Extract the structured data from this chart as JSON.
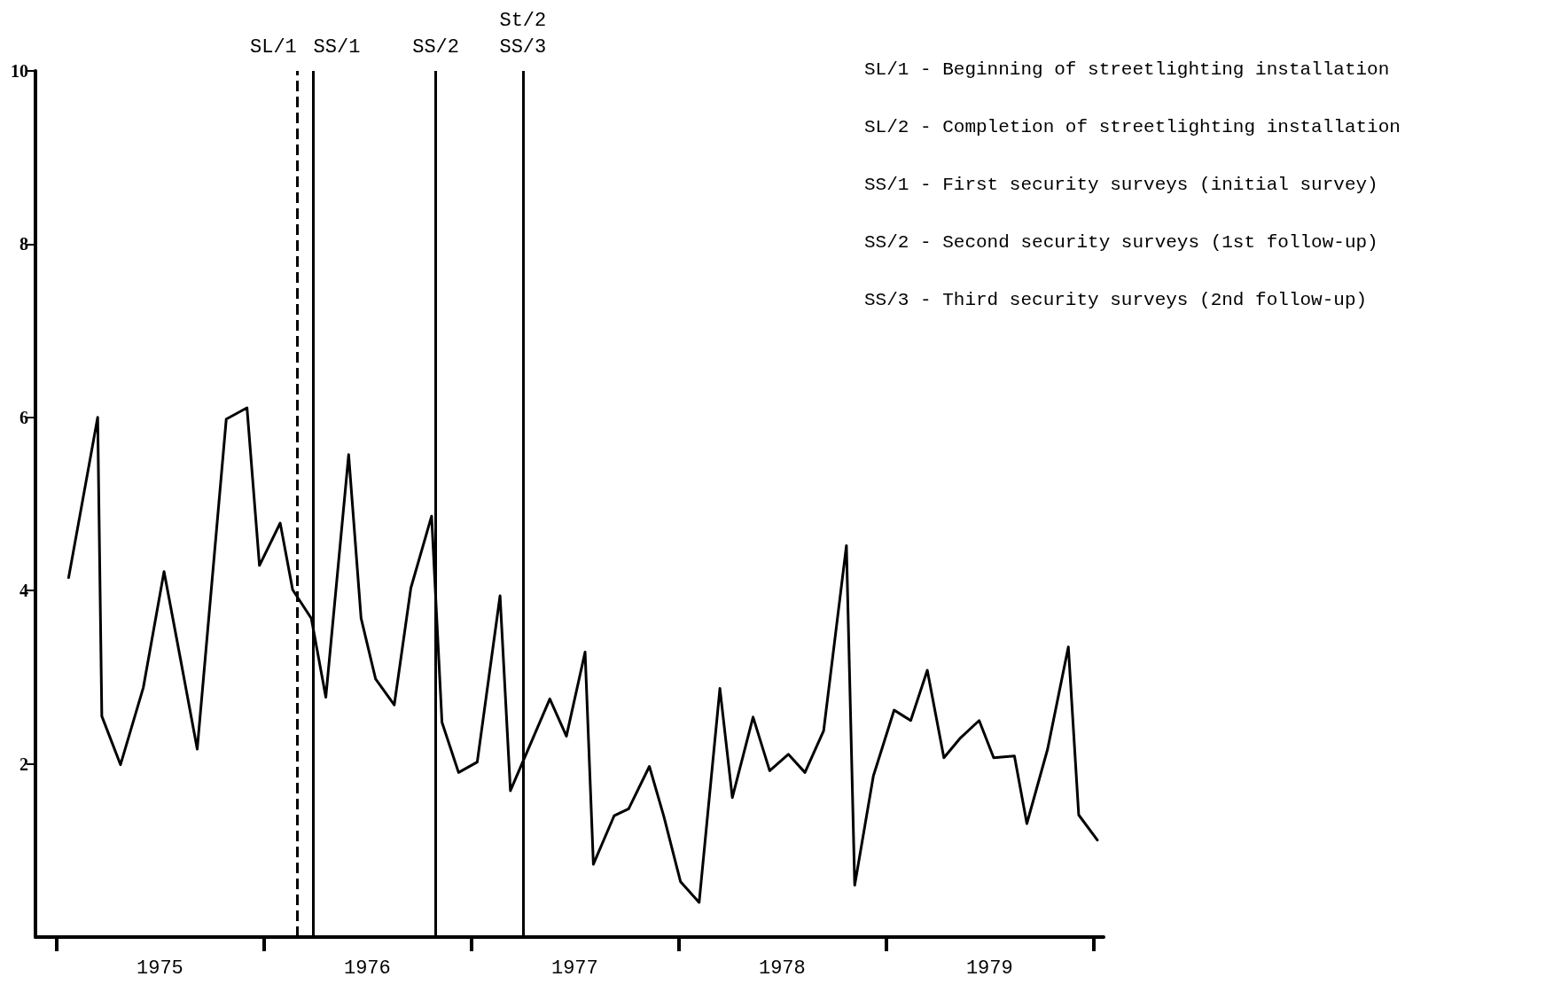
{
  "chart_data": {
    "type": "line",
    "x": [
      1975.06,
      1975.2,
      1975.22,
      1975.31,
      1975.42,
      1975.52,
      1975.6,
      1975.68,
      1975.82,
      1975.92,
      1975.98,
      1976.08,
      1976.14,
      1976.23,
      1976.3,
      1976.41,
      1976.47,
      1976.54,
      1976.63,
      1976.71,
      1976.81,
      1976.86,
      1976.94,
      1977.03,
      1977.14,
      1977.19,
      1977.38,
      1977.46,
      1977.55,
      1977.59,
      1977.69,
      1977.76,
      1977.86,
      1977.93,
      1978.01,
      1978.1,
      1978.2,
      1978.26,
      1978.36,
      1978.44,
      1978.53,
      1978.61,
      1978.7,
      1978.81,
      1978.85,
      1978.94,
      1979.04,
      1979.12,
      1979.2,
      1979.28,
      1979.36,
      1979.45,
      1979.52,
      1979.62,
      1979.68,
      1979.78,
      1979.88,
      1979.93,
      1980.02
    ],
    "series": [
      {
        "color": "#000000",
        "values": [
          4.15,
          6.0,
          2.55,
          1.99,
          2.88,
          4.22,
          3.2,
          2.17,
          5.98,
          6.11,
          4.29,
          4.78,
          4.01,
          3.68,
          2.77,
          5.57,
          3.68,
          2.98,
          2.68,
          4.03,
          4.86,
          2.48,
          1.9,
          2.02,
          3.94,
          1.69,
          2.75,
          2.32,
          3.29,
          0.84,
          1.4,
          1.48,
          1.97,
          1.39,
          0.64,
          0.4,
          2.87,
          1.61,
          2.54,
          1.92,
          2.11,
          1.9,
          2.38,
          4.52,
          0.6,
          1.86,
          2.62,
          2.5,
          3.08,
          2.07,
          2.3,
          2.5,
          2.07,
          2.09,
          1.31,
          2.17,
          3.35,
          1.41,
          1.12
        ]
      }
    ],
    "xlim": [
      1974.9,
      1980.05
    ],
    "xticks": [
      {
        "value": 1975,
        "label": null
      },
      {
        "value": 1975.5,
        "label": "1975"
      },
      {
        "value": 1976,
        "label": null
      },
      {
        "value": 1976.5,
        "label": "1976"
      },
      {
        "value": 1977,
        "label": null
      },
      {
        "value": 1977.5,
        "label": "1977"
      },
      {
        "value": 1978,
        "label": null
      },
      {
        "value": 1978.5,
        "label": "1978"
      },
      {
        "value": 1979,
        "label": null
      },
      {
        "value": 1979.5,
        "label": "1979"
      },
      {
        "value": 1980,
        "label": null
      }
    ],
    "ylim": [
      0,
      10
    ],
    "yticks": [
      2,
      4,
      6,
      8,
      10
    ],
    "grid": false,
    "marker": "none",
    "line_style": "solid",
    "ref_lines": [
      {
        "axis": "x",
        "value": 1976.16,
        "label": "SL/1",
        "line_style": "dashed",
        "color": "#000000"
      },
      {
        "axis": "x",
        "value": 1976.24,
        "label": "SS/1",
        "line_style": "solid",
        "color": "#000000"
      },
      {
        "axis": "x",
        "value": 1976.83,
        "label": "SS/2",
        "line_style": "solid",
        "color": "#000000"
      },
      {
        "axis": "x",
        "value": 1977.25,
        "label": "St/2\nSS/3",
        "line_style": "solid",
        "color": "#000000"
      }
    ],
    "annotations": [
      "SL/1 - Beginning of streetlighting installation",
      "SL/2 - Completion of streetlighting installation",
      "SS/1 - First security surveys (initial survey)",
      "SS/2 - Second security surveys (1st follow-up)",
      "SS/3 - Third security surveys (2nd follow-up)"
    ]
  }
}
